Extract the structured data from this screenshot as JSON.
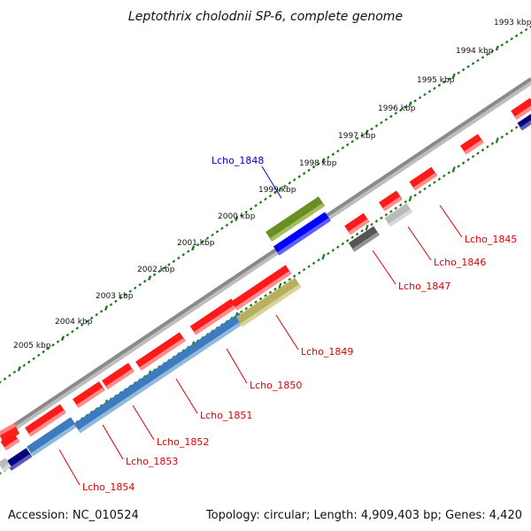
{
  "title": "Leptothrix cholodnii SP-6, complete genome",
  "footer": {
    "accession": "Accession: NC_010524",
    "summary": "Topology: circular; Length: 4,909,403 bp; Genes: 4,420"
  },
  "colors": {
    "forward_gene": "#ff0000",
    "reverse_gene": "#ff0000",
    "backbone": "#808080",
    "ruler": "#1a7a1a",
    "label_red": "#dd0000",
    "label_blue": "#0000cc"
  },
  "ruler_labels": [
    "1993 kbp",
    "1994 kbp",
    "1995 kbp",
    "1996 kbp",
    "1997 kbp",
    "1998 kbp",
    "1999 kbp",
    "2000 kbp",
    "2001 kbp",
    "2002 kbp",
    "2003 kbp",
    "2004 kbp",
    "2005 kbp"
  ],
  "gene_labels": [
    {
      "text": "Lcho_1845",
      "color": "#dd0000"
    },
    {
      "text": "Lcho_1846",
      "color": "#dd0000"
    },
    {
      "text": "Lcho_1847",
      "color": "#dd0000"
    },
    {
      "text": "Lcho_1848",
      "color": "#0000cc"
    },
    {
      "text": "Lcho_1849",
      "color": "#dd0000"
    },
    {
      "text": "Lcho_1850",
      "color": "#dd0000"
    },
    {
      "text": "Lcho_1851",
      "color": "#dd0000"
    },
    {
      "text": "Lcho_1852",
      "color": "#dd0000"
    },
    {
      "text": "Lcho_1853",
      "color": "#dd0000"
    },
    {
      "text": "Lcho_1854",
      "color": "#dd0000"
    }
  ]
}
